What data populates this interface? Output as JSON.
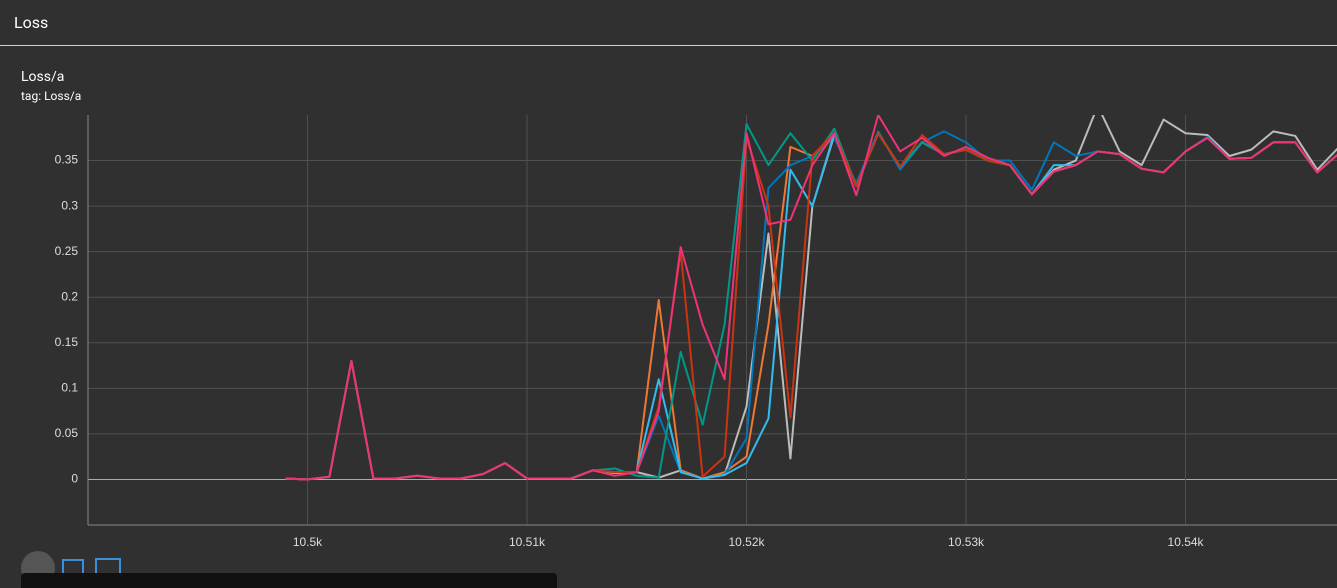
{
  "header": {
    "title": "Loss"
  },
  "card": {
    "title": "Loss/a",
    "tag": "tag: Loss/a"
  },
  "chart_data": {
    "type": "line",
    "x": [
      10499,
      10500,
      10501,
      10502,
      10503,
      10504,
      10505,
      10506,
      10507,
      10508,
      10509,
      10510,
      10511,
      10512,
      10513,
      10514,
      10515,
      10516,
      10517,
      10518,
      10519,
      10520,
      10521,
      10522,
      10523,
      10524,
      10525,
      10526,
      10527,
      10528,
      10529,
      10530,
      10531,
      10532,
      10533,
      10534,
      10535,
      10536,
      10537,
      10538,
      10539,
      10540,
      10541,
      10542,
      10543,
      10544,
      10545,
      10546,
      10547
    ],
    "xlim": [
      10490,
      10546.9
    ],
    "xticks": [
      {
        "value": 10500,
        "label": "10.5k"
      },
      {
        "value": 10510,
        "label": "10.51k"
      },
      {
        "value": 10520,
        "label": "10.52k"
      },
      {
        "value": 10530,
        "label": "10.53k"
      },
      {
        "value": 10540,
        "label": "10.54k"
      }
    ],
    "ylim": [
      -0.05,
      0.4
    ],
    "yticks": [
      0,
      0.05,
      0.1,
      0.15,
      0.2,
      0.25,
      0.3,
      0.35
    ],
    "grid": true,
    "series": [
      {
        "color": "#bbbbbb",
        "values": [
          0.001,
          0,
          0.003,
          0.13,
          0.001,
          0.001,
          0.004,
          0.001,
          0.001,
          0.006,
          0.018,
          0.001,
          0.001,
          0.001,
          0.01,
          0.007,
          0.008,
          0.002,
          0.01,
          0.001,
          0.005,
          0.08,
          0.27,
          0.023,
          0.3,
          0.378,
          0.322,
          0.38,
          0.343,
          0.37,
          0.357,
          0.362,
          0.35,
          0.345,
          0.313,
          0.34,
          0.35,
          0.41,
          0.36,
          0.345,
          0.395,
          0.38,
          0.378,
          0.355,
          0.362,
          0.382,
          0.377,
          0.34,
          0.365
        ]
      },
      {
        "color": "#ee7733",
        "values": [
          0.001,
          0,
          0.003,
          0.13,
          0.001,
          0.001,
          0.004,
          0.001,
          0.001,
          0.006,
          0.018,
          0.001,
          0.001,
          0.001,
          0.01,
          0.008,
          0.008,
          0.197,
          0.01,
          0.001,
          0.008,
          0.025,
          0.17,
          0.365,
          0.355,
          0.38,
          0.322,
          0.38,
          0.343,
          0.37,
          0.357,
          0.362,
          0.35,
          0.345,
          0.313,
          0.338,
          0.345,
          0.36,
          0.357,
          0.341,
          0.337,
          0.36,
          0.375,
          0.352,
          0.353,
          0.37,
          0.37,
          0.337,
          0.358
        ]
      },
      {
        "color": "#0077bb",
        "values": [
          0.001,
          0,
          0.003,
          0.13,
          0.001,
          0.001,
          0.004,
          0.001,
          0.001,
          0.006,
          0.018,
          0.001,
          0.001,
          0.001,
          0.01,
          0.008,
          0.008,
          0.07,
          0.008,
          0.001,
          0.005,
          0.045,
          0.32,
          0.345,
          0.355,
          0.375,
          0.325,
          0.382,
          0.34,
          0.37,
          0.382,
          0.37,
          0.35,
          0.35,
          0.318,
          0.37,
          0.355,
          0.36,
          0.357,
          0.341,
          0.337,
          0.36,
          0.376,
          0.352,
          0.353,
          0.37,
          0.37,
          0.337,
          0.358
        ]
      },
      {
        "color": "#33bbee",
        "values": [
          0.001,
          0,
          0.003,
          0.13,
          0.001,
          0.001,
          0.004,
          0.001,
          0.001,
          0.006,
          0.018,
          0.001,
          0.001,
          0.001,
          0.01,
          0.008,
          0.008,
          0.11,
          0.008,
          0.001,
          0.005,
          0.018,
          0.067,
          0.34,
          0.3,
          0.38,
          0.322,
          0.38,
          0.343,
          0.37,
          0.357,
          0.362,
          0.35,
          0.345,
          0.313,
          0.345,
          0.345,
          0.36,
          0.357,
          0.341,
          0.337,
          0.36,
          0.375,
          0.352,
          0.353,
          0.37,
          0.37,
          0.337,
          0.358
        ]
      },
      {
        "color": "#009988",
        "values": [
          0.001,
          0,
          0.003,
          0.13,
          0.001,
          0.001,
          0.004,
          0.001,
          0.001,
          0.006,
          0.018,
          0.001,
          0.001,
          0.001,
          0.01,
          0.012,
          0.004,
          0.002,
          0.14,
          0.06,
          0.17,
          0.39,
          0.345,
          0.38,
          0.35,
          0.385,
          0.322,
          0.38,
          0.343,
          0.37,
          0.357,
          0.362,
          0.35,
          0.345,
          0.313,
          0.338,
          0.345,
          0.36,
          0.357,
          0.341,
          0.337,
          0.36,
          0.375,
          0.352,
          0.353,
          0.37,
          0.37,
          0.337,
          0.358
        ]
      },
      {
        "color": "#cc3311",
        "values": [
          0.001,
          0,
          0.003,
          0.13,
          0.001,
          0.001,
          0.004,
          0.001,
          0.001,
          0.006,
          0.018,
          0.001,
          0.001,
          0.001,
          0.01,
          0.008,
          0.008,
          0.08,
          0.25,
          0.003,
          0.025,
          0.375,
          0.3,
          0.068,
          0.355,
          0.38,
          0.322,
          0.38,
          0.343,
          0.378,
          0.357,
          0.362,
          0.35,
          0.345,
          0.313,
          0.338,
          0.345,
          0.36,
          0.357,
          0.341,
          0.337,
          0.36,
          0.375,
          0.352,
          0.353,
          0.37,
          0.37,
          0.337,
          0.358
        ]
      },
      {
        "color": "#ee3377",
        "values": [
          0.001,
          0,
          0.003,
          0.13,
          0.001,
          0.001,
          0.004,
          0.001,
          0.001,
          0.006,
          0.018,
          0.001,
          0.001,
          0.001,
          0.01,
          0.004,
          0.008,
          0.075,
          0.255,
          0.17,
          0.11,
          0.38,
          0.28,
          0.285,
          0.345,
          0.38,
          0.312,
          0.4,
          0.36,
          0.375,
          0.355,
          0.365,
          0.353,
          0.345,
          0.313,
          0.338,
          0.345,
          0.36,
          0.357,
          0.341,
          0.337,
          0.36,
          0.375,
          0.352,
          0.353,
          0.37,
          0.37,
          0.337,
          0.358
        ]
      }
    ]
  }
}
